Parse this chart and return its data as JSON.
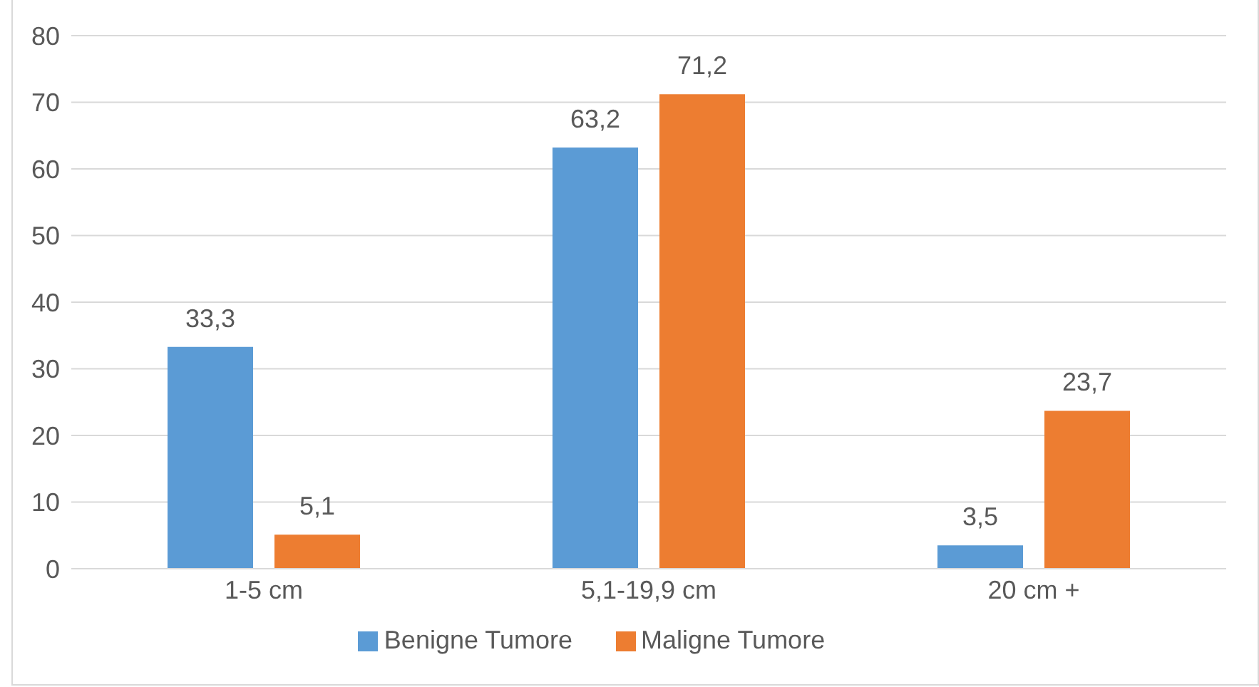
{
  "chart_data": {
    "type": "bar",
    "categories": [
      "1-5 cm",
      "5,1-19,9 cm",
      "20 cm +"
    ],
    "series": [
      {
        "name": "Benigne Tumore",
        "color": "#5b9bd5",
        "values": [
          33.3,
          63.2,
          3.5
        ],
        "value_labels": [
          "33,3",
          "63,2",
          "3,5"
        ]
      },
      {
        "name": "Maligne Tumore",
        "color": "#ed7d31",
        "values": [
          5.1,
          71.2,
          23.7
        ],
        "value_labels": [
          "5,1",
          "71,2",
          "23,7"
        ]
      }
    ],
    "ylim": [
      0,
      80
    ],
    "yticks": [
      0,
      10,
      20,
      30,
      40,
      50,
      60,
      70,
      80
    ],
    "grid": "y",
    "legend": "bottom"
  }
}
